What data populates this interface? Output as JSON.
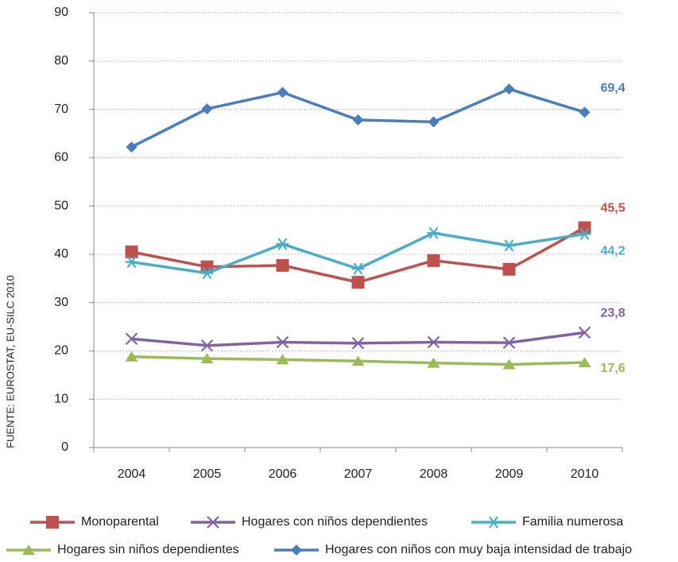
{
  "chart_data": {
    "type": "line",
    "source": "FUENTE: EUROSTAT, EU-SILC 2010",
    "categories": [
      "2004",
      "2005",
      "2006",
      "2007",
      "2008",
      "2009",
      "2010"
    ],
    "ylim": [
      0,
      90
    ],
    "yticks": [
      0,
      10,
      20,
      30,
      40,
      50,
      60,
      70,
      80,
      90
    ],
    "grid": true,
    "legend": "bottom",
    "series": [
      {
        "name": "Monoparental",
        "color": "#c0504d",
        "marker": "square",
        "values": [
          40.5,
          37.4,
          37.7,
          34.2,
          38.7,
          36.9,
          45.5
        ],
        "value_labels": [
          null,
          null,
          null,
          null,
          null,
          null,
          "45,5"
        ]
      },
      {
        "name": "Hogares con niños dependientes",
        "color": "#8064a2",
        "marker": "x",
        "values": [
          22.5,
          21.1,
          21.8,
          21.6,
          21.8,
          21.7,
          23.8
        ],
        "value_labels": [
          null,
          null,
          null,
          null,
          null,
          null,
          "23,8"
        ]
      },
      {
        "name": "Familia numerosa",
        "color": "#4bacc6",
        "marker": "star",
        "values": [
          38.4,
          36.1,
          42.1,
          37.0,
          44.4,
          41.8,
          44.2
        ],
        "value_labels": [
          null,
          null,
          null,
          null,
          null,
          null,
          "44,2"
        ]
      },
      {
        "name": "Hogares sin niños dependientes",
        "color": "#9bbb59",
        "marker": "triangle",
        "values": [
          18.8,
          18.4,
          18.2,
          17.9,
          17.5,
          17.2,
          17.6
        ],
        "value_labels": [
          null,
          null,
          null,
          null,
          null,
          null,
          "17,6"
        ]
      },
      {
        "name": "Hogares con niños con muy baja intensidad de trabajo",
        "color": "#4a7ebb",
        "marker": "diamond",
        "values": [
          62.2,
          70.1,
          73.5,
          67.8,
          67.4,
          74.2,
          69.4
        ],
        "value_labels": [
          null,
          null,
          null,
          null,
          null,
          null,
          "69,4"
        ]
      }
    ]
  }
}
